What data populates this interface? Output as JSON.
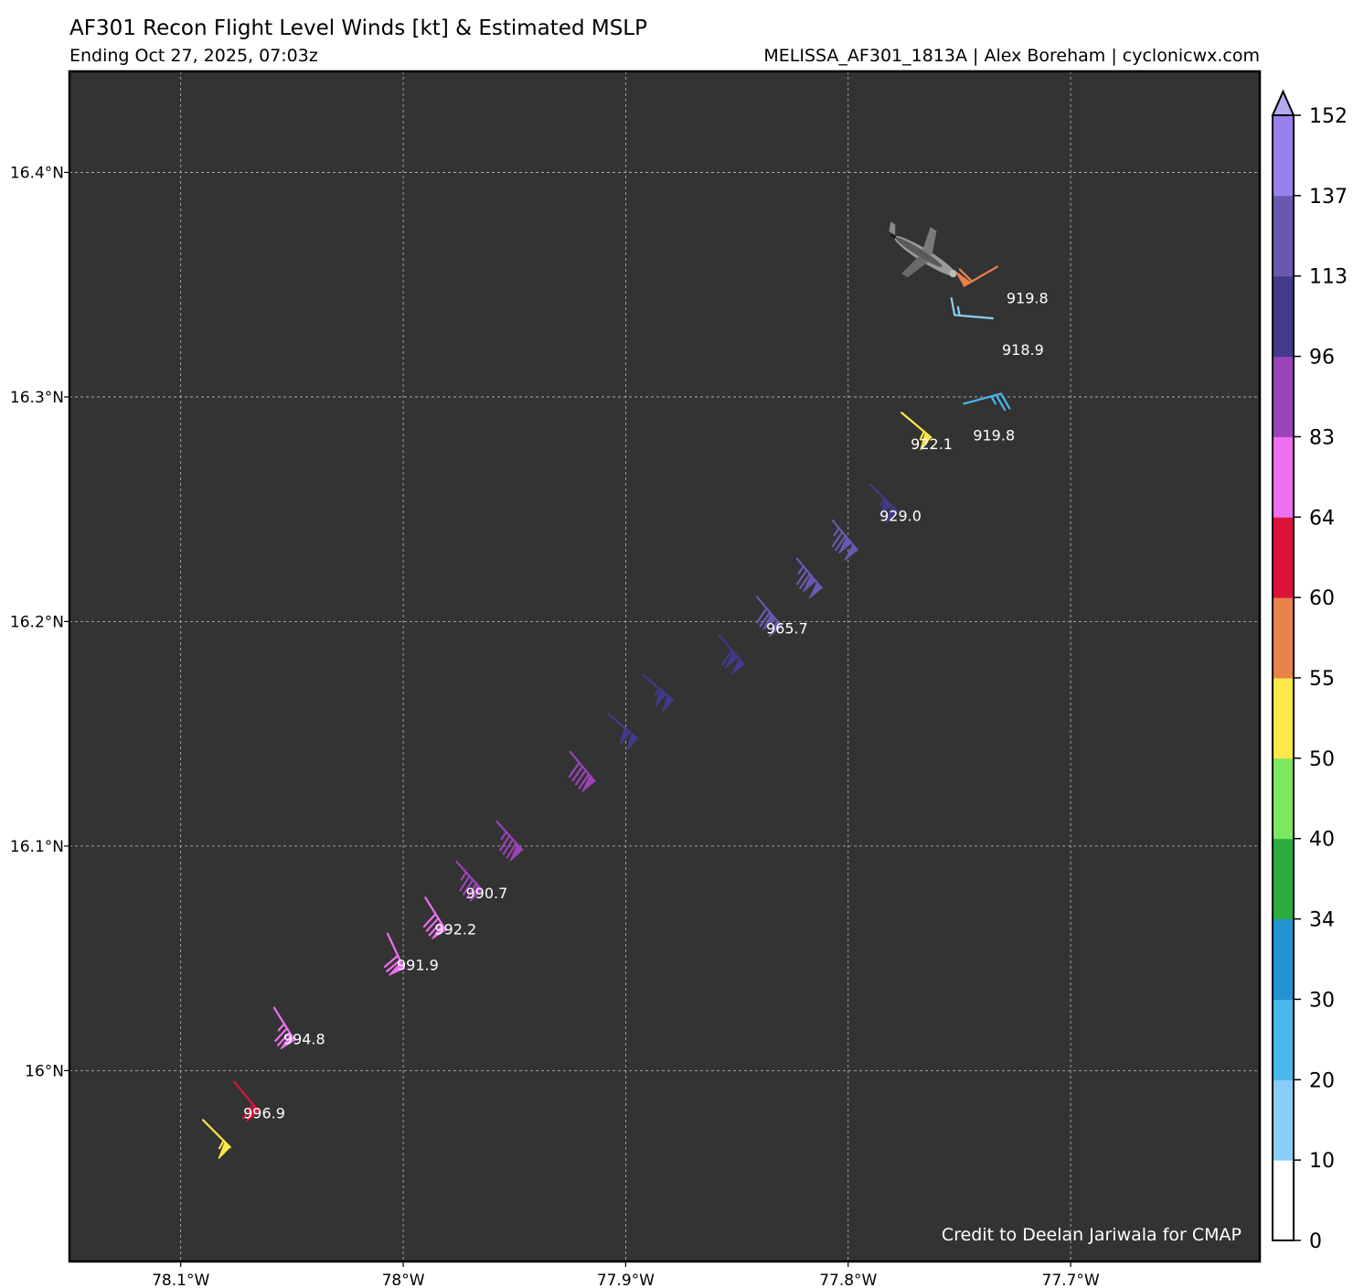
{
  "header": {
    "title": "AF301 Recon Flight Level Winds [kt] & Estimated MSLP",
    "subtitle_left": "Ending Oct 27, 2025, 07:03z",
    "subtitle_right": "MELISSA_AF301_1813A | Alex Boreham | cyclonicwx.com"
  },
  "map": {
    "background_color": "#333333",
    "grid_color": "#bbbbbb",
    "lon_range": [
      -78.15,
      -77.615
    ],
    "lat_range": [
      15.915,
      16.445
    ],
    "lon_ticks": [
      {
        "value": -78.1,
        "label": "78.1°W"
      },
      {
        "value": -78.0,
        "label": "78°W"
      },
      {
        "value": -77.9,
        "label": "77.9°W"
      },
      {
        "value": -77.8,
        "label": "77.8°W"
      },
      {
        "value": -77.7,
        "label": "77.7°W"
      }
    ],
    "lat_ticks": [
      {
        "value": 16.0,
        "label": "16°N"
      },
      {
        "value": 16.1,
        "label": "16.1°N"
      },
      {
        "value": 16.2,
        "label": "16.2°N"
      },
      {
        "value": 16.3,
        "label": "16.3°N"
      },
      {
        "value": 16.4,
        "label": "16.4°N"
      }
    ],
    "credit": "Credit to Deelan Jariwala for CMAP",
    "aircraft_icon": "aircraft-icon",
    "aircraft_position": {
      "lon": -77.77,
      "lat": 16.365
    }
  },
  "chart_data": {
    "type": "scatter",
    "title": "AF301 Recon Flight Level Winds [kt] & Estimated MSLP",
    "xlabel": "",
    "ylabel": "",
    "xlim": [
      -78.15,
      -77.615
    ],
    "ylim": [
      15.915,
      16.445
    ],
    "grid": true,
    "colorbar": {
      "label": "",
      "boundaries": [
        0,
        10,
        20,
        30,
        34,
        40,
        50,
        55,
        60,
        64,
        83,
        96,
        113,
        137,
        152
      ],
      "colors": [
        "#ffffff",
        "#87cefa",
        "#4ab8ea",
        "#2292d0",
        "#2aab3c",
        "#7ce860",
        "#fde84a",
        "#e8834a",
        "#dc143c",
        "#ee6ff0",
        "#9a44b8",
        "#423a8a",
        "#6a58b0",
        "#9a80ec",
        "#b4a8f0"
      ],
      "extend": "max"
    },
    "points": [
      {
        "lon": -78.09,
        "lat": 15.978,
        "speed": 53,
        "dir": 135,
        "mslp": null
      },
      {
        "lon": -78.076,
        "lat": 15.995,
        "speed": 60,
        "dir": 140,
        "mslp": "996.9"
      },
      {
        "lon": -78.058,
        "lat": 16.028,
        "speed": 75,
        "dir": 148,
        "mslp": "994.8"
      },
      {
        "lon": -78.007,
        "lat": 16.061,
        "speed": 72,
        "dir": 155,
        "mslp": "991.9"
      },
      {
        "lon": -77.99,
        "lat": 16.077,
        "speed": 78,
        "dir": 148,
        "mslp": "992.2"
      },
      {
        "lon": -77.976,
        "lat": 16.093,
        "speed": 85,
        "dir": 138,
        "mslp": "990.7"
      },
      {
        "lon": -77.958,
        "lat": 16.111,
        "speed": 85,
        "dir": 138,
        "mslp": null
      },
      {
        "lon": -77.925,
        "lat": 16.142,
        "speed": 88,
        "dir": 140,
        "mslp": null
      },
      {
        "lon": -77.908,
        "lat": 16.159,
        "speed": 100,
        "dir": 130,
        "mslp": null
      },
      {
        "lon": -77.892,
        "lat": 16.176,
        "speed": 105,
        "dir": 130,
        "mslp": null
      },
      {
        "lon": -77.858,
        "lat": 16.194,
        "speed": 110,
        "dir": 140,
        "mslp": null
      },
      {
        "lon": -77.841,
        "lat": 16.211,
        "speed": 120,
        "dir": 140,
        "mslp": "965.7"
      },
      {
        "lon": -77.823,
        "lat": 16.228,
        "speed": 125,
        "dir": 140,
        "mslp": null
      },
      {
        "lon": -77.807,
        "lat": 16.245,
        "speed": 125,
        "dir": 140,
        "mslp": null
      },
      {
        "lon": -77.79,
        "lat": 16.261,
        "speed": 105,
        "dir": 135,
        "mslp": "929.0"
      },
      {
        "lon": -77.776,
        "lat": 16.293,
        "speed": 53,
        "dir": 130,
        "mslp": "922.1"
      },
      {
        "lon": -77.748,
        "lat": 16.297,
        "speed": 25,
        "dir": 75,
        "mslp": "919.8"
      },
      {
        "lon": -77.735,
        "lat": 16.335,
        "speed": 15,
        "dir": 275,
        "mslp": "918.9"
      },
      {
        "lon": -77.733,
        "lat": 16.358,
        "speed": 58,
        "dir": 240,
        "mslp": "919.8"
      }
    ]
  }
}
